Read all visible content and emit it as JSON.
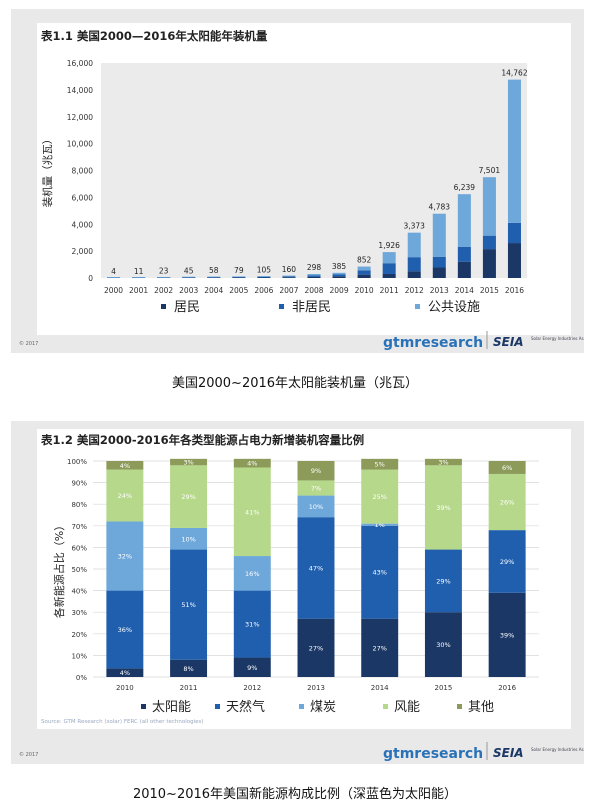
{
  "captions": {
    "chart1": "美国2000~2016年太阳能装机量（兆瓦）",
    "chart2": "2010~2016年美国新能源构成比例（深蓝色为太阳能）"
  },
  "footer": {
    "copyright": "© 2017",
    "logo_gtm": "gtmresearch",
    "logo_seia": "SEIA",
    "logo_seia_tagline": "Solar Energy Industries Association"
  },
  "colors": {
    "panel_bg": "#e9e9e9",
    "plot_bg": "#ffffff",
    "dark_navy": "#1a3766",
    "medium_blue": "#1f5fae",
    "light_blue": "#6ea7da",
    "light_green": "#b6d88b",
    "olive": "#8c9b5a",
    "gtm_blue": "#2a72b8"
  },
  "chart_data": [
    {
      "type": "bar",
      "stacked": true,
      "title": "表1.1 美国2000—2016年太阳能年装机量",
      "ylabel": "装机量（兆瓦）",
      "xlabel": "",
      "ylim": [
        0,
        16000
      ],
      "yticks": [
        "0",
        "2,000",
        "4,000",
        "6,000",
        "8,000",
        "10,000",
        "12,000",
        "14,000",
        "16,000"
      ],
      "categories": [
        "2000",
        "2001",
        "2002",
        "2003",
        "2004",
        "2005",
        "2006",
        "2007",
        "2008",
        "2009",
        "2010",
        "2011",
        "2012",
        "2013",
        "2014",
        "2015",
        "2016"
      ],
      "totals": [
        4,
        11,
        23,
        45,
        58,
        79,
        105,
        160,
        298,
        385,
        852,
        1926,
        3373,
        4783,
        6239,
        7501,
        14762
      ],
      "total_labels": [
        "4",
        "11",
        "23",
        "45",
        "58",
        "79",
        "105",
        "160",
        "298",
        "385",
        "852",
        "1,926",
        "3,373",
        "4,783",
        "6,239",
        "7,501",
        "14,762"
      ],
      "series": [
        {
          "name": "居民",
          "color": "#1a3766",
          "values": [
            2,
            5,
            10,
            15,
            20,
            30,
            40,
            60,
            80,
            130,
            250,
            300,
            500,
            780,
            1210,
            2150,
            2600
          ]
        },
        {
          "name": "非居民",
          "color": "#1f5fae",
          "values": [
            1,
            4,
            8,
            20,
            25,
            30,
            45,
            60,
            120,
            130,
            320,
            800,
            1050,
            800,
            1100,
            1000,
            1500
          ]
        },
        {
          "name": "公共设施",
          "color": "#6ea7da",
          "values": [
            1,
            2,
            5,
            10,
            13,
            19,
            20,
            40,
            98,
            125,
            282,
            826,
            1823,
            3203,
            3929,
            4351,
            10662
          ]
        }
      ],
      "legend_position": "bottom",
      "grid": false
    },
    {
      "type": "bar",
      "stacked": true,
      "percent": true,
      "title": "表1.2 美国2000-2016年各类型能源占电力新增装机容量比例",
      "ylabel": "各新能源占比（%）",
      "xlabel": "",
      "ylim": [
        0,
        100
      ],
      "yticks": [
        "0%",
        "10%",
        "20%",
        "30%",
        "40%",
        "50%",
        "60%",
        "70%",
        "80%",
        "90%",
        "100%"
      ],
      "categories": [
        "2010",
        "2011",
        "2012",
        "2013",
        "2014",
        "2015",
        "2016"
      ],
      "series": [
        {
          "name": "太阳能",
          "color": "#1a3766",
          "values": [
            4,
            8,
            9,
            27,
            27,
            30,
            39
          ],
          "labels": [
            "4%",
            "8%",
            "9%",
            "27%",
            "27%",
            "30%",
            "39%"
          ]
        },
        {
          "name": "天然气",
          "color": "#1f5fae",
          "values": [
            36,
            51,
            31,
            47,
            43,
            29,
            29
          ],
          "labels": [
            "36%",
            "51%",
            "31%",
            "47%",
            "43%",
            "29%",
            "29%"
          ]
        },
        {
          "name": "煤炭",
          "color": "#6ea7da",
          "values": [
            32,
            10,
            16,
            10,
            1,
            0,
            0
          ],
          "labels": [
            "32%",
            "10%",
            "16%",
            "10%",
            "1%",
            "",
            ""
          ]
        },
        {
          "name": "风能",
          "color": "#b6d88b",
          "values": [
            24,
            29,
            41,
            7,
            25,
            39,
            26
          ],
          "labels": [
            "24%",
            "29%",
            "41%",
            "7%",
            "25%",
            "39%",
            "26%"
          ]
        },
        {
          "name": "其他",
          "color": "#8c9b5a",
          "values": [
            4,
            3,
            4,
            9,
            5,
            3,
            6
          ],
          "labels": [
            "4%",
            "3%",
            "4%",
            "9%",
            "5%",
            "3%",
            "6%"
          ]
        }
      ],
      "source_note": "Source: GTM Research (solar) FERC (all other technologies)",
      "legend_position": "bottom",
      "grid": true
    }
  ]
}
